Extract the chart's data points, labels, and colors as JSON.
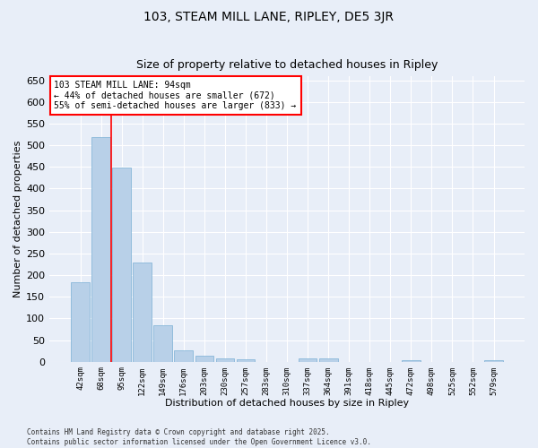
{
  "title": "103, STEAM MILL LANE, RIPLEY, DE5 3JR",
  "subtitle": "Size of property relative to detached houses in Ripley",
  "xlabel": "Distribution of detached houses by size in Ripley",
  "ylabel": "Number of detached properties",
  "bar_color": "#b8d0e8",
  "bar_edge_color": "#7aafd4",
  "background_color": "#e8eef8",
  "grid_color": "#ffffff",
  "categories": [
    "42sqm",
    "68sqm",
    "95sqm",
    "122sqm",
    "149sqm",
    "176sqm",
    "203sqm",
    "230sqm",
    "257sqm",
    "283sqm",
    "310sqm",
    "337sqm",
    "364sqm",
    "391sqm",
    "418sqm",
    "445sqm",
    "472sqm",
    "498sqm",
    "525sqm",
    "552sqm",
    "579sqm"
  ],
  "values": [
    183,
    519,
    449,
    230,
    85,
    27,
    14,
    8,
    5,
    0,
    0,
    7,
    7,
    0,
    0,
    0,
    3,
    0,
    0,
    0,
    3
  ],
  "ylim": [
    0,
    660
  ],
  "yticks": [
    0,
    50,
    100,
    150,
    200,
    250,
    300,
    350,
    400,
    450,
    500,
    550,
    600,
    650
  ],
  "red_line_x": 1.5,
  "annotation_text_line1": "103 STEAM MILL LANE: 94sqm",
  "annotation_text_line2": "← 44% of detached houses are smaller (672)",
  "annotation_text_line3": "55% of semi-detached houses are larger (833) →",
  "footer_line1": "Contains HM Land Registry data © Crown copyright and database right 2025.",
  "footer_line2": "Contains public sector information licensed under the Open Government Licence v3.0."
}
